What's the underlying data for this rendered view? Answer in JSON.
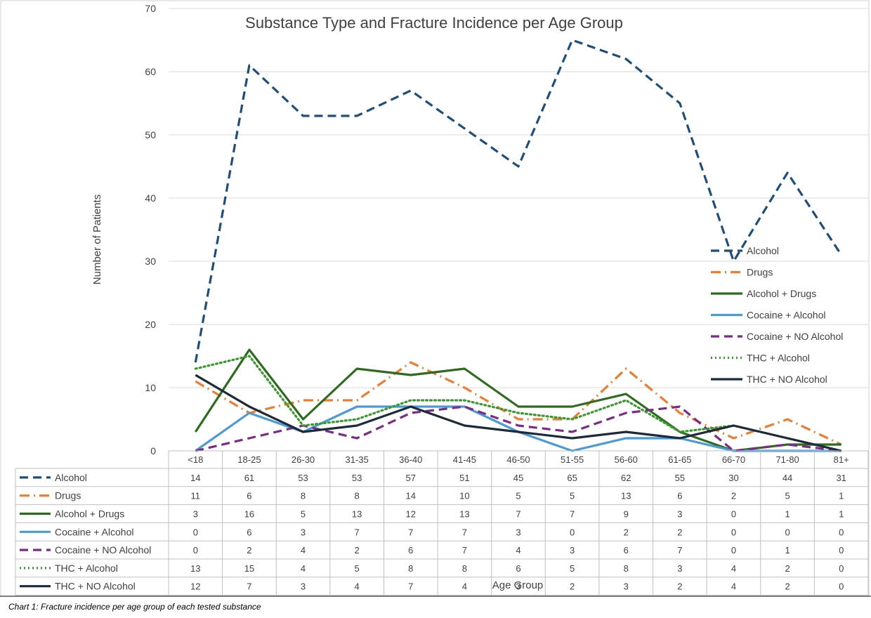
{
  "chart_data": {
    "type": "line",
    "title": "Substance Type and Fracture Incidence per Age Group",
    "xlabel": "Age Group",
    "ylabel": "Number of Patients",
    "ylim": [
      0,
      70
    ],
    "yticks": [
      0,
      10,
      20,
      30,
      40,
      50,
      60,
      70
    ],
    "grid": true,
    "legend_position": "right",
    "data_table": true,
    "categories": [
      "<18",
      "18-25",
      "26-30",
      "31-35",
      "36-40",
      "41-45",
      "46-50",
      "51-55",
      "56-60",
      "61-65",
      "66-70",
      "71-80",
      "81+"
    ],
    "series": [
      {
        "name": "Alcohol",
        "color": "#1f4e79",
        "dash": "long-dash",
        "values": [
          14,
          61,
          53,
          53,
          57,
          51,
          45,
          65,
          62,
          55,
          30,
          44,
          31
        ]
      },
      {
        "name": "Drugs",
        "color": "#ed7d31",
        "dash": "dash-dot",
        "values": [
          11,
          6,
          8,
          8,
          14,
          10,
          5,
          5,
          13,
          6,
          2,
          5,
          1
        ]
      },
      {
        "name": "Alcohol + Drugs",
        "color": "#2e6b1f",
        "dash": "solid",
        "values": [
          3,
          16,
          5,
          13,
          12,
          13,
          7,
          7,
          9,
          3,
          0,
          1,
          1
        ]
      },
      {
        "name": "Cocaine + Alcohol",
        "color": "#4a9bd6",
        "dash": "solid",
        "values": [
          0,
          6,
          3,
          7,
          7,
          7,
          3,
          0,
          2,
          2,
          0,
          0,
          0
        ]
      },
      {
        "name": "Cocaine + NO Alcohol",
        "color": "#7b2c86",
        "dash": "long-dash",
        "values": [
          0,
          2,
          4,
          2,
          6,
          7,
          4,
          3,
          6,
          7,
          0,
          1,
          0
        ]
      },
      {
        "name": "THC + Alcohol",
        "color": "#3a9a2e",
        "dash": "dotted",
        "values": [
          13,
          15,
          4,
          5,
          8,
          8,
          6,
          5,
          8,
          3,
          4,
          2,
          0
        ]
      },
      {
        "name": "THC + NO Alcohol",
        "color": "#1c2a3a",
        "dash": "solid",
        "values": [
          12,
          7,
          3,
          4,
          7,
          4,
          3,
          2,
          3,
          2,
          4,
          2,
          0
        ]
      }
    ]
  },
  "caption": "Chart 1: Fracture incidence per age group of each tested substance"
}
